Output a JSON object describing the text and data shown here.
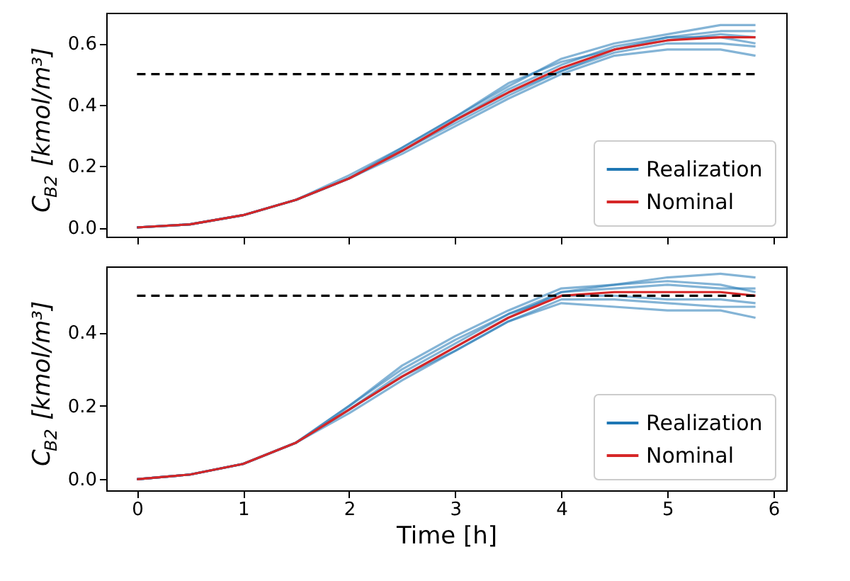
{
  "chart_data": [
    {
      "type": "line",
      "ylabel": "C$_{B2}$ [kmol/m³]",
      "xlim": [
        -0.29,
        6.12
      ],
      "xticks": [
        {
          "value": 0,
          "label": null
        },
        {
          "value": 1,
          "label": null
        },
        {
          "value": 2,
          "label": null
        },
        {
          "value": 3,
          "label": null
        },
        {
          "value": 4,
          "label": null
        },
        {
          "value": 5,
          "label": null
        },
        {
          "value": 6,
          "label": null
        }
      ],
      "ylim": [
        -0.03,
        0.7
      ],
      "yticks": [
        {
          "value": 0,
          "label": "0.0"
        },
        0.2,
        0.4,
        0.6
      ],
      "tick_labels": "y",
      "legend": "bottom right",
      "grid": false,
      "line_style": "solid",
      "x": [
        0,
        0.5,
        1,
        1.5,
        2,
        2.5,
        3,
        3.5,
        4,
        4.5,
        5,
        5.5,
        5.83
      ],
      "ref_lines": [
        {
          "axis": "y",
          "value": 0.5,
          "color": "#000000",
          "line_style": "dashed"
        }
      ],
      "series": [
        {
          "name": "Realization",
          "color": "#1f77b4",
          "values": [
            0,
            0.01,
            0.04,
            0.09,
            0.16,
            0.26,
            0.36,
            0.46,
            0.55,
            0.6,
            0.63,
            0.66,
            0.66
          ]
        },
        {
          "color": "#1f77b4",
          "values": [
            0,
            0.01,
            0.04,
            0.09,
            0.16,
            0.24,
            0.33,
            0.42,
            0.5,
            0.56,
            0.58,
            0.58,
            0.56
          ]
        },
        {
          "color": "#1f77b4",
          "values": [
            0,
            0.01,
            0.04,
            0.09,
            0.16,
            0.25,
            0.35,
            0.45,
            0.53,
            0.59,
            0.62,
            0.64,
            0.64
          ]
        },
        {
          "color": "#1f77b4",
          "values": [
            0,
            0.01,
            0.04,
            0.09,
            0.16,
            0.25,
            0.34,
            0.43,
            0.51,
            0.57,
            0.6,
            0.6,
            0.59
          ]
        },
        {
          "color": "#1f77b4",
          "values": [
            0,
            0.01,
            0.04,
            0.09,
            0.17,
            0.26,
            0.36,
            0.47,
            0.54,
            0.58,
            0.61,
            0.63,
            0.62
          ]
        },
        {
          "color": "#1f77b4",
          "values": [
            0,
            0.01,
            0.04,
            0.09,
            0.16,
            0.25,
            0.35,
            0.44,
            0.51,
            0.58,
            0.62,
            0.62,
            0.6
          ]
        },
        {
          "name": "Nominal",
          "color": "#d62728",
          "values": [
            0,
            0.01,
            0.04,
            0.09,
            0.16,
            0.25,
            0.35,
            0.44,
            0.52,
            0.58,
            0.61,
            0.62,
            0.62
          ]
        }
      ]
    },
    {
      "type": "line",
      "xlabel": "Time [h]",
      "ylabel": "C$_{B2}$ [kmol/m³]",
      "xlim": [
        -0.29,
        6.12
      ],
      "xticks": [
        0,
        1,
        2,
        3,
        4,
        5,
        6
      ],
      "ylim": [
        -0.03,
        0.58
      ],
      "yticks": [
        {
          "value": 0,
          "label": "0.0"
        },
        0.2,
        0.4
      ],
      "legend": "bottom right",
      "grid": false,
      "line_style": "solid",
      "x": [
        0,
        0.5,
        1,
        1.5,
        2,
        2.5,
        3,
        3.5,
        4,
        4.5,
        5,
        5.5,
        5.83
      ],
      "ref_lines": [
        {
          "axis": "y",
          "value": 0.5,
          "color": "#000000",
          "line_style": "dashed"
        }
      ],
      "series": [
        {
          "name": "Realization",
          "color": "#1f77b4",
          "values": [
            0,
            0.013,
            0.042,
            0.1,
            0.2,
            0.31,
            0.39,
            0.46,
            0.52,
            0.53,
            0.55,
            0.56,
            0.55
          ]
        },
        {
          "color": "#1f77b4",
          "values": [
            0,
            0.013,
            0.042,
            0.1,
            0.19,
            0.28,
            0.35,
            0.43,
            0.48,
            0.47,
            0.46,
            0.46,
            0.44
          ]
        },
        {
          "color": "#1f77b4",
          "values": [
            0,
            0.013,
            0.042,
            0.1,
            0.19,
            0.28,
            0.36,
            0.44,
            0.51,
            0.52,
            0.53,
            0.52,
            0.52
          ]
        },
        {
          "color": "#1f77b4",
          "values": [
            0,
            0.013,
            0.042,
            0.1,
            0.18,
            0.27,
            0.35,
            0.43,
            0.49,
            0.49,
            0.48,
            0.47,
            0.47
          ]
        },
        {
          "color": "#1f77b4",
          "values": [
            0,
            0.013,
            0.042,
            0.1,
            0.19,
            0.29,
            0.37,
            0.45,
            0.51,
            0.53,
            0.54,
            0.53,
            0.51
          ]
        },
        {
          "color": "#1f77b4",
          "values": [
            0,
            0.013,
            0.042,
            0.1,
            0.2,
            0.3,
            0.38,
            0.45,
            0.5,
            0.5,
            0.49,
            0.49,
            0.48
          ]
        },
        {
          "name": "Nominal",
          "color": "#d62728",
          "values": [
            0,
            0.013,
            0.042,
            0.1,
            0.19,
            0.28,
            0.36,
            0.44,
            0.5,
            0.51,
            0.51,
            0.51,
            0.5
          ]
        }
      ]
    }
  ]
}
